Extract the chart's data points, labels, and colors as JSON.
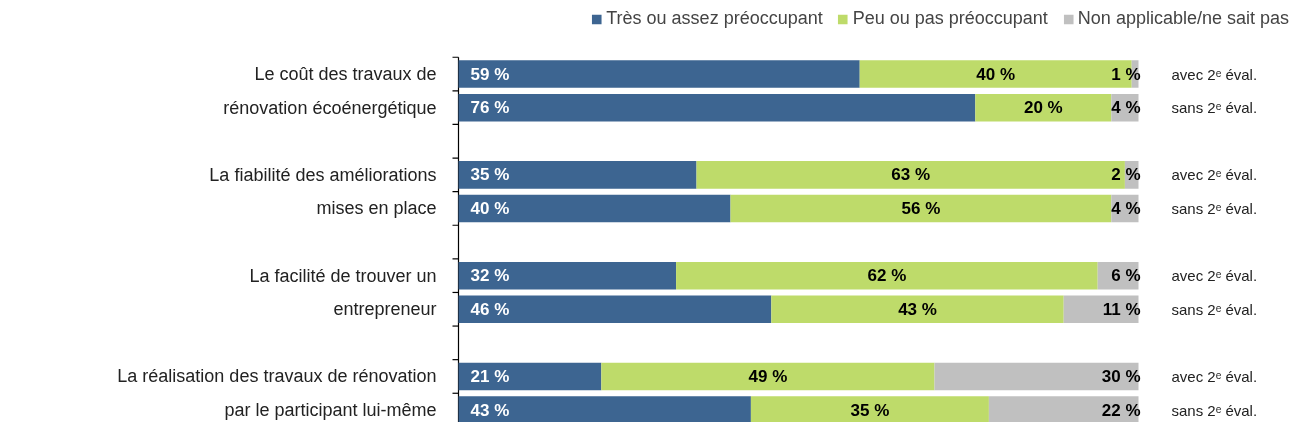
{
  "chart_data": {
    "type": "bar",
    "orientation": "horizontal",
    "stacked": true,
    "legend": "top right",
    "categories": [
      "avec 2ᵉ éval.",
      "sans 2ᵉ éval.",
      "avec 2ᵉ éval.",
      "sans 2ᵉ éval.",
      "avec 2ᵉ éval.",
      "sans 2ᵉ éval.",
      "avec 2ᵉ éval.",
      "sans 2ᵉ éval."
    ],
    "annotations": [
      "Le coût des travaux de\nrénovation écoénergétique",
      "La fiabilité des améliorations\nmises en place",
      "La facilité de trouver un\nentrepreneur",
      "La réalisation des travaux de rénovation\npar le participant lui-même"
    ],
    "series": [
      {
        "name": "Très ou assez préoccupant",
        "color": "#3d6591",
        "values": [
          59,
          76,
          35,
          40,
          32,
          46,
          21,
          43
        ],
        "value_labels": [
          "59 %",
          "76 %",
          "35 %",
          "40 %",
          "32 %",
          "46 %",
          "21 %",
          "43 %"
        ]
      },
      {
        "name": "Peu ou pas préoccupant",
        "color": "#bedb6a",
        "values": [
          40,
          20,
          63,
          56,
          62,
          43,
          49,
          35
        ],
        "value_labels": [
          "40 %",
          "20 %",
          "63 %",
          "56 %",
          "62 %",
          "43 %",
          "49 %",
          "35 %"
        ]
      },
      {
        "name": "Non applicable/ne sait pas",
        "color": "#c0c0c0",
        "values": [
          1,
          4,
          2,
          4,
          6,
          11,
          30,
          22
        ],
        "value_labels": [
          "1 %",
          "4 %",
          "2 %",
          "4 %",
          "6 %",
          "11 %",
          "30 %",
          "22 %"
        ]
      }
    ]
  }
}
